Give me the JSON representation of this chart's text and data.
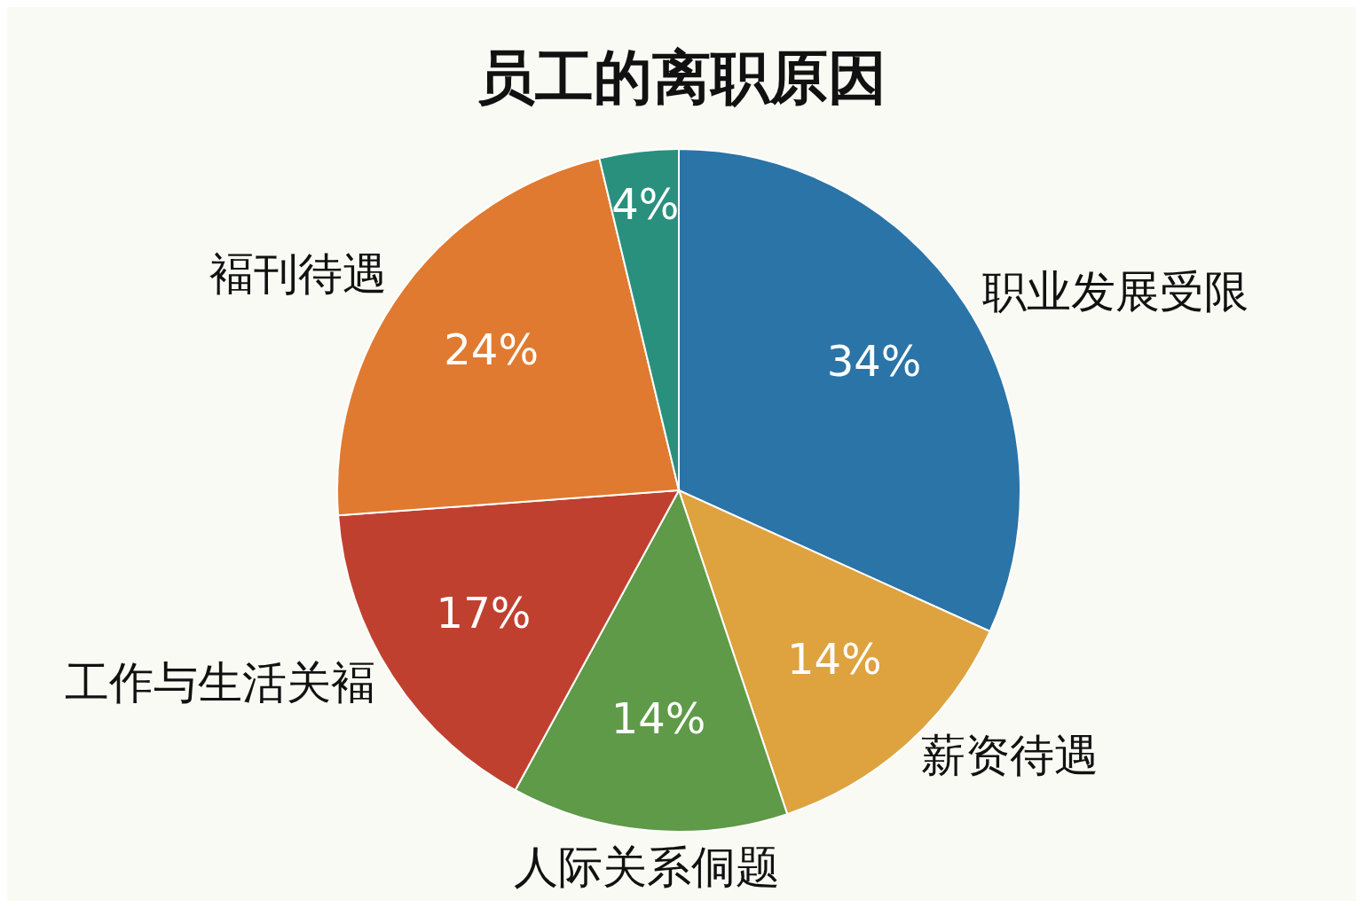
{
  "chart_data": {
    "type": "pie",
    "title": "员工的离职原因",
    "categories": [
      "职业发展受限",
      "薪资待遇",
      "人际关系侗题",
      "工作与生活关褔",
      "褔刊待遇",
      null
    ],
    "values": [
      34,
      14,
      14,
      17,
      24,
      4
    ],
    "colors": [
      "#2a74a8",
      "#dea23f",
      "#5e9a48",
      "#c0402f",
      "#e07a30",
      "#2a907e"
    ],
    "value_labels": [
      "34%",
      "14%",
      "14%",
      "17%",
      "24%",
      "4%"
    ]
  }
}
